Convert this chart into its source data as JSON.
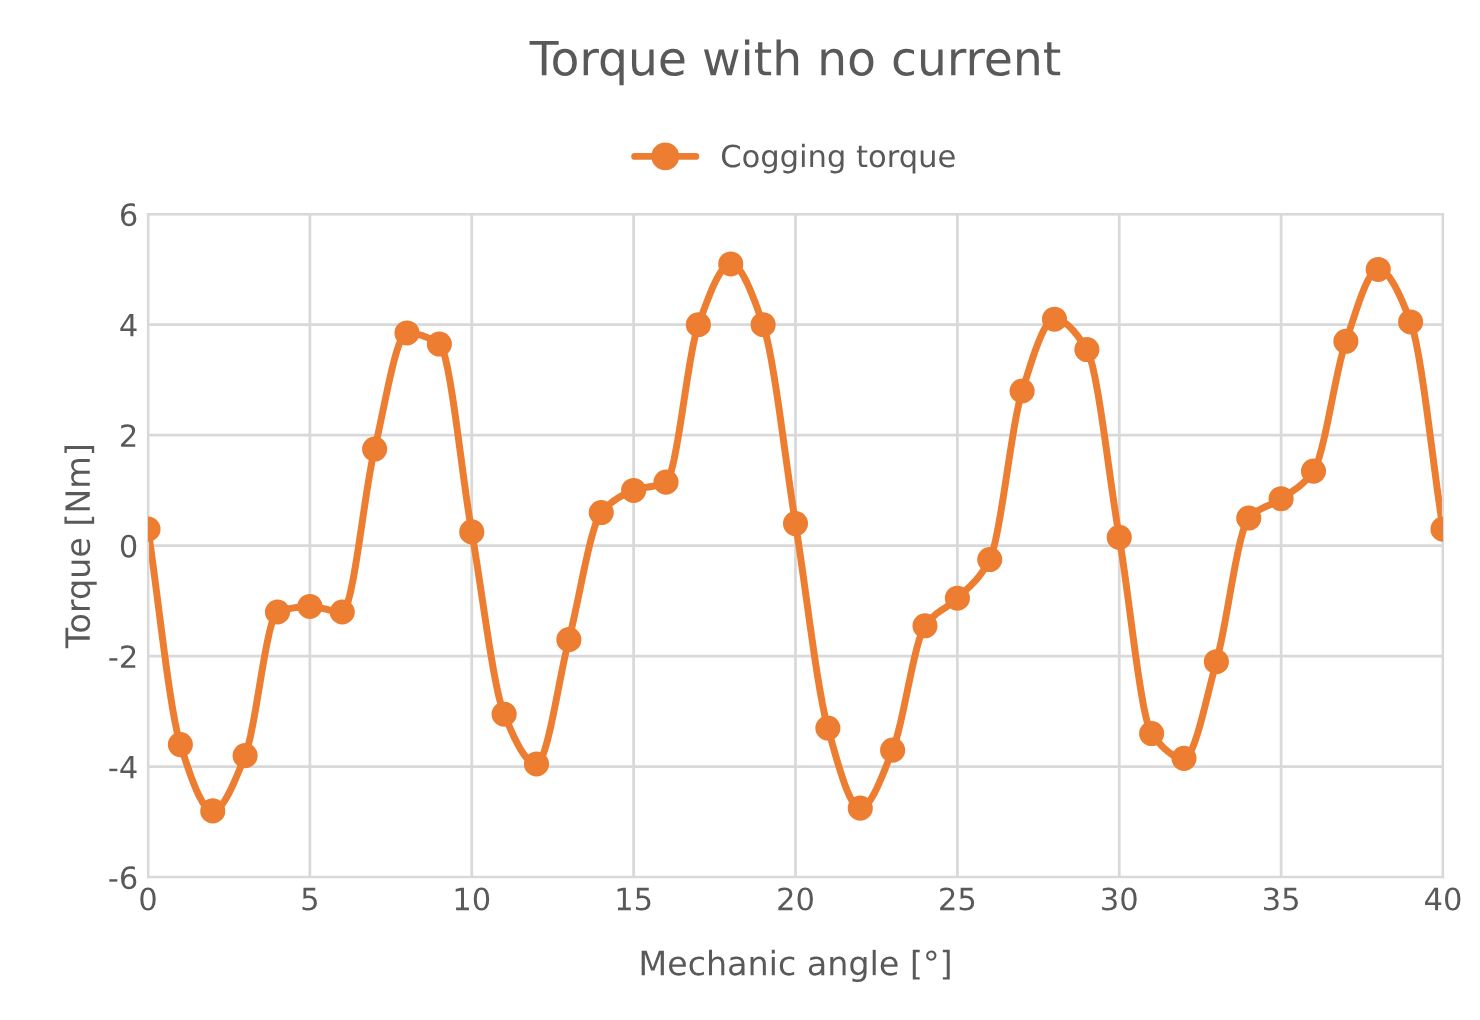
{
  "chart_data": {
    "type": "line",
    "title": "Torque with no current",
    "xlabel": "Mechanic angle [°]",
    "ylabel": "Torque [Nm]",
    "x": [
      0,
      1,
      2,
      3,
      4,
      5,
      6,
      7,
      8,
      9,
      10,
      11,
      12,
      13,
      14,
      15,
      16,
      17,
      18,
      19,
      20,
      21,
      22,
      23,
      24,
      25,
      26,
      27,
      28,
      29,
      30,
      31,
      32,
      33,
      34,
      35,
      36,
      37,
      38,
      39,
      40
    ],
    "series": [
      {
        "name": "Cogging torque",
        "color": "#ed7d31",
        "values": [
          0.3,
          -3.6,
          -4.8,
          -3.8,
          -1.2,
          -1.1,
          -1.2,
          1.75,
          3.85,
          3.65,
          0.25,
          -3.05,
          -3.95,
          -1.7,
          0.6,
          1.0,
          1.15,
          4.0,
          5.1,
          4.0,
          0.4,
          -3.3,
          -4.75,
          -3.7,
          -1.45,
          -0.95,
          -0.25,
          2.8,
          4.1,
          3.55,
          0.15,
          -3.4,
          -3.85,
          -2.1,
          0.5,
          0.85,
          1.35,
          3.7,
          5.0,
          4.05,
          0.3
        ]
      }
    ],
    "xlim": [
      0,
      40
    ],
    "xticks": [
      0,
      5,
      10,
      15,
      20,
      25,
      30,
      35,
      40
    ],
    "ylim": [
      -6,
      6
    ],
    "yticks": [
      -6,
      -4,
      -2,
      0,
      2,
      4,
      6
    ],
    "grid": true,
    "legend": "top",
    "marker": "circle",
    "line_style": "solid"
  }
}
